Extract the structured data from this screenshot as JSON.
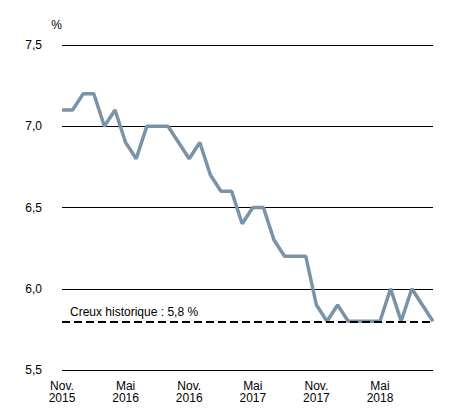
{
  "chart_data": {
    "type": "line",
    "y_label": "%",
    "categories": [
      "Nov. 2015",
      null,
      null,
      null,
      null,
      null,
      "Mai 2016",
      null,
      null,
      null,
      null,
      null,
      "Nov. 2016",
      null,
      null,
      null,
      null,
      null,
      "Mai 2017",
      null,
      null,
      null,
      null,
      null,
      "Nov. 2017",
      null,
      null,
      null,
      null,
      null,
      "Mai 2018",
      null,
      null,
      null,
      null,
      null
    ],
    "values": [
      7.1,
      7.1,
      7.2,
      7.2,
      7.0,
      7.1,
      6.9,
      6.8,
      7.0,
      7.0,
      7.0,
      6.9,
      6.8,
      6.9,
      6.7,
      6.6,
      6.6,
      6.4,
      6.5,
      6.5,
      6.3,
      6.2,
      6.2,
      6.2,
      5.9,
      5.8,
      5.9,
      5.8,
      5.8,
      5.8,
      5.8,
      6.0,
      5.8,
      6.0,
      5.9,
      5.8
    ],
    "color": "#7a93a8",
    "ylim": [
      5.5,
      7.5
    ],
    "yticks": [
      {
        "value": 5.5,
        "label": "5,5"
      },
      {
        "value": 6.0,
        "label": "6,0"
      },
      {
        "value": 6.5,
        "label": "6,5"
      },
      {
        "value": 7.0,
        "label": "7,0"
      },
      {
        "value": 7.5,
        "label": "7,5"
      }
    ],
    "grid": true,
    "annotations": [
      {
        "text": "Creux historique : 5,8 %",
        "y": 5.8,
        "line_style": "dashed"
      }
    ]
  }
}
